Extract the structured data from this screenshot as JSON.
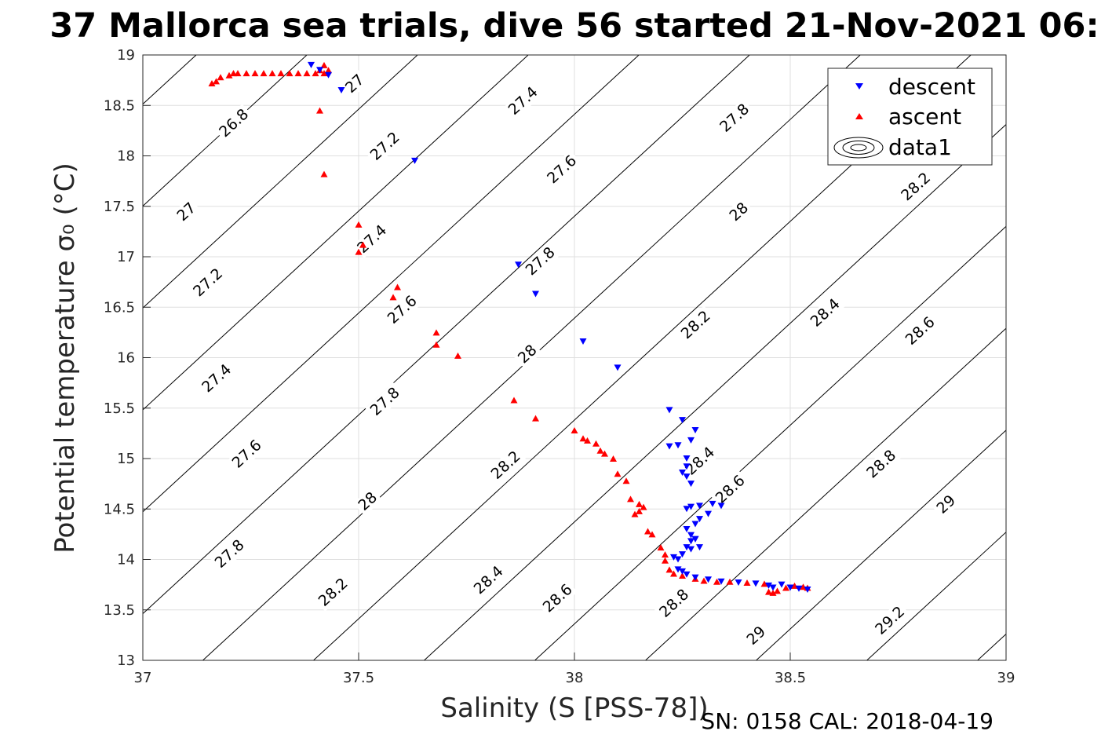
{
  "figure": {
    "title": "37 Mallorca sea trials, dive 56 started 21-Nov-2021 06:",
    "footer": "SN: 0158  CAL: 2018-04-19"
  },
  "chart_data": {
    "type": "scatter",
    "title": "37 Mallorca sea trials, dive 56 started 21-Nov-2021 06:",
    "xlabel": "Salinity (S [PSS-78])",
    "ylabel": "Potential temperature σ₀ (°C)",
    "xlim": [
      37,
      39
    ],
    "ylim": [
      13,
      19
    ],
    "x_ticks": [
      "37",
      "37.5",
      "38",
      "38.5",
      "39"
    ],
    "y_ticks": [
      "13",
      "13.5",
      "14",
      "14.5",
      "15",
      "15.5",
      "16",
      "16.5",
      "17",
      "17.5",
      "18",
      "18.5",
      "19"
    ],
    "grid": true,
    "legend_position": "top-right",
    "legend": [
      "descent",
      "ascent",
      "data1"
    ],
    "colors": {
      "descent": "#0000ff",
      "ascent": "#ff0000",
      "contour": "#000000"
    },
    "contour_levels": [
      "26.8",
      "27",
      "27.2",
      "27.4",
      "27.6",
      "27.8",
      "28",
      "28.2",
      "28.4",
      "28.6",
      "28.8",
      "29",
      "29.2"
    ],
    "contour_label_positions": [
      {
        "label": "26.8",
        "x": 37.21,
        "y": 18.33
      },
      {
        "label": "27",
        "x": 37.1,
        "y": 17.45
      },
      {
        "label": "27",
        "x": 37.49,
        "y": 18.72
      },
      {
        "label": "27.2",
        "x": 37.15,
        "y": 16.75
      },
      {
        "label": "27.2",
        "x": 37.56,
        "y": 18.1
      },
      {
        "label": "27.4",
        "x": 37.17,
        "y": 15.8
      },
      {
        "label": "27.4",
        "x": 37.53,
        "y": 17.18
      },
      {
        "label": "27.4",
        "x": 37.88,
        "y": 18.55
      },
      {
        "label": "27.6",
        "x": 37.24,
        "y": 15.05
      },
      {
        "label": "27.6",
        "x": 37.6,
        "y": 16.48
      },
      {
        "label": "27.6",
        "x": 37.97,
        "y": 17.87
      },
      {
        "label": "27.8",
        "x": 37.2,
        "y": 14.06
      },
      {
        "label": "27.8",
        "x": 37.56,
        "y": 15.57
      },
      {
        "label": "27.8",
        "x": 37.92,
        "y": 16.96
      },
      {
        "label": "27.8",
        "x": 38.37,
        "y": 18.38
      },
      {
        "label": "28",
        "x": 37.52,
        "y": 14.58
      },
      {
        "label": "28",
        "x": 37.89,
        "y": 16.04
      },
      {
        "label": "28",
        "x": 38.38,
        "y": 17.45
      },
      {
        "label": "28.2",
        "x": 37.44,
        "y": 13.68
      },
      {
        "label": "28.2",
        "x": 37.84,
        "y": 14.94
      },
      {
        "label": "28.2",
        "x": 38.28,
        "y": 16.33
      },
      {
        "label": "28.2",
        "x": 38.79,
        "y": 17.7
      },
      {
        "label": "28.4",
        "x": 37.8,
        "y": 13.8
      },
      {
        "label": "28.4",
        "x": 38.29,
        "y": 14.98
      },
      {
        "label": "28.4",
        "x": 38.58,
        "y": 16.45
      },
      {
        "label": "28.6",
        "x": 37.96,
        "y": 13.62
      },
      {
        "label": "28.6",
        "x": 38.36,
        "y": 14.7
      },
      {
        "label": "28.6",
        "x": 38.8,
        "y": 16.27
      },
      {
        "label": "28.8",
        "x": 38.23,
        "y": 13.57
      },
      {
        "label": "28.8",
        "x": 38.71,
        "y": 14.95
      },
      {
        "label": "29",
        "x": 38.42,
        "y": 13.25
      },
      {
        "label": "29",
        "x": 38.86,
        "y": 14.55
      },
      {
        "label": "29.2",
        "x": 38.73,
        "y": 13.4
      }
    ],
    "series": [
      {
        "name": "descent",
        "marker": "triangle-down",
        "x": [
          37.39,
          37.41,
          37.43,
          37.46,
          37.63,
          37.87,
          37.91,
          38.02,
          38.1,
          38.22,
          38.25,
          38.22,
          38.24,
          38.27,
          38.28,
          38.26,
          38.26,
          38.25,
          38.26,
          38.27,
          38.28,
          38.26,
          38.27,
          38.29,
          38.32,
          38.34,
          38.31,
          38.29,
          38.28,
          38.26,
          38.27,
          38.27,
          38.28,
          38.29,
          38.27,
          38.26,
          38.25,
          38.24,
          38.23,
          38.24,
          38.25,
          38.26,
          38.28,
          38.31,
          38.34,
          38.38,
          38.42,
          38.45,
          38.46,
          38.48,
          38.5,
          38.52,
          38.54
        ],
        "y": [
          18.9,
          18.85,
          18.8,
          18.65,
          17.95,
          16.92,
          16.63,
          16.16,
          15.9,
          15.48,
          15.38,
          15.12,
          15.13,
          15.18,
          15.28,
          15.0,
          14.92,
          14.86,
          14.82,
          14.75,
          14.2,
          14.5,
          14.52,
          14.53,
          14.55,
          14.53,
          14.45,
          14.4,
          14.35,
          14.3,
          14.24,
          14.18,
          14.2,
          14.12,
          14.1,
          14.12,
          14.05,
          14.0,
          14.02,
          13.9,
          13.88,
          13.85,
          13.82,
          13.8,
          13.78,
          13.77,
          13.76,
          13.74,
          13.72,
          13.75,
          13.72,
          13.71,
          13.7
        ]
      },
      {
        "name": "ascent",
        "marker": "triangle-up",
        "x": [
          37.16,
          37.17,
          37.18,
          37.2,
          37.21,
          37.22,
          37.24,
          37.26,
          37.28,
          37.3,
          37.32,
          37.34,
          37.36,
          37.38,
          37.4,
          37.41,
          37.42,
          37.43,
          37.42,
          37.41,
          37.42,
          37.5,
          37.51,
          37.5,
          37.59,
          37.58,
          37.68,
          37.68,
          37.73,
          37.86,
          37.91,
          38.0,
          38.02,
          38.03,
          38.05,
          38.06,
          38.07,
          38.09,
          38.1,
          38.12,
          38.13,
          38.15,
          38.16,
          38.15,
          38.14,
          38.17,
          38.18,
          38.2,
          38.21,
          38.21,
          38.22,
          38.23,
          38.25,
          38.28,
          38.3,
          38.33,
          38.36,
          38.4,
          38.44,
          38.45,
          38.46,
          38.47,
          38.49,
          38.51,
          38.53,
          38.54
        ],
        "y": [
          18.72,
          18.74,
          18.78,
          18.8,
          18.82,
          18.82,
          18.82,
          18.82,
          18.82,
          18.82,
          18.82,
          18.82,
          18.82,
          18.82,
          18.82,
          18.85,
          18.9,
          18.85,
          18.82,
          18.45,
          17.82,
          17.32,
          17.12,
          17.05,
          16.7,
          16.6,
          16.25,
          16.13,
          16.02,
          15.58,
          15.4,
          15.28,
          15.2,
          15.18,
          15.15,
          15.08,
          15.05,
          15.0,
          14.85,
          14.78,
          14.6,
          14.55,
          14.52,
          14.48,
          14.45,
          14.28,
          14.25,
          14.12,
          14.05,
          13.99,
          13.9,
          13.86,
          13.84,
          13.81,
          13.79,
          13.78,
          13.78,
          13.77,
          13.76,
          13.68,
          13.67,
          13.69,
          13.72,
          13.74,
          13.73,
          13.72
        ]
      }
    ]
  }
}
